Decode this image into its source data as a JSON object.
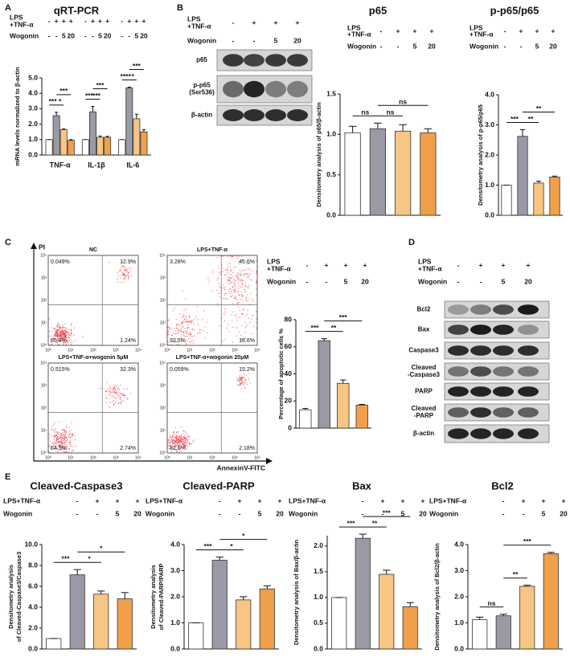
{
  "panels": [
    "A",
    "B",
    "C",
    "D",
    "E"
  ],
  "chart_data": [
    {
      "type": "bar",
      "title": "qRT-PCR",
      "ylabel": [
        "mRNA levels normalized to β-actin"
      ],
      "treatments": [
        {
          "label": [
            "LPS",
            "+TNF-α"
          ],
          "marks": [
            "-",
            "+",
            "+",
            "+",
            "-",
            "+",
            "+",
            "+",
            "-",
            "+",
            "+",
            "+"
          ]
        },
        {
          "label": [
            "Wogonin"
          ],
          "marks": [
            "-",
            "-",
            "5",
            "20",
            "-",
            "-",
            "5",
            "20",
            "-",
            "-",
            "5",
            "20"
          ]
        }
      ],
      "categories": [
        "TNF-α",
        "IL-1β",
        "IL-6"
      ],
      "series": [
        {
          "color": "#ffffff",
          "values": [
            1,
            1,
            1
          ],
          "errors": [
            0,
            0,
            0
          ]
        },
        {
          "color": "#9a9aa6",
          "values": [
            2.55,
            2.8,
            4.35
          ],
          "errors": [
            0.22,
            0.35,
            0.05
          ]
        },
        {
          "color": "#f7c684",
          "values": [
            1.65,
            1.15,
            2.35
          ],
          "errors": [
            0.05,
            0.08,
            0.3
          ]
        },
        {
          "color": "#f0a04b",
          "values": [
            0.95,
            1.15,
            1.5
          ],
          "errors": [
            0.05,
            0.06,
            0.15
          ]
        }
      ],
      "ylim": [
        0,
        5
      ],
      "yticks": [
        {
          "value": 0,
          "label": "0.0"
        },
        {
          "value": 1,
          "label": "1.0"
        },
        {
          "value": 2,
          "label": "2.0"
        },
        {
          "value": 3,
          "label": "3.0"
        },
        {
          "value": 4,
          "label": "4.0"
        },
        {
          "value": 5,
          "label": "5.0"
        }
      ],
      "annotations": [
        {
          "text": "***",
          "between": [
            0,
            1
          ]
        },
        {
          "text": "*",
          "between": [
            1,
            2
          ]
        },
        {
          "text": "***",
          "between": [
            1,
            3
          ]
        },
        {
          "text": "***",
          "between": [
            4,
            5
          ]
        },
        {
          "text": "***",
          "between": [
            5,
            6
          ]
        },
        {
          "text": "***",
          "between": [
            5,
            7
          ]
        },
        {
          "text": "****",
          "between": [
            8,
            9
          ]
        },
        {
          "text": "*",
          "between": [
            9,
            10
          ]
        },
        {
          "text": "***",
          "between": [
            9,
            11
          ]
        }
      ]
    },
    {
      "type": "bar",
      "title": "p65",
      "ylabel": [
        "Densitometry analysis of p65/β-actin"
      ],
      "treatments": [
        {
          "label": [
            "LPS",
            "+TNF-α"
          ],
          "marks": [
            "-",
            "+",
            "+",
            "+"
          ]
        },
        {
          "label": [
            "Wogonin"
          ],
          "marks": [
            "-",
            "-",
            "5",
            "20"
          ]
        }
      ],
      "values": [
        1.02,
        1.07,
        1.04,
        1.02
      ],
      "errors": [
        0.08,
        0.07,
        0.08,
        0.05
      ],
      "colors": [
        "#ffffff",
        "#9a9aa6",
        "#f7c684",
        "#f0a04b"
      ],
      "ylim": [
        0,
        1.5
      ],
      "yticks": [
        {
          "value": 0,
          "label": "0.0"
        },
        {
          "value": 0.5,
          "label": "0.5"
        },
        {
          "value": 1,
          "label": "1.0"
        },
        {
          "value": 1.5,
          "label": "1.5"
        }
      ],
      "annotations": [
        {
          "text": "ns",
          "between": [
            0,
            1
          ]
        },
        {
          "text": "ns",
          "between": [
            1,
            2
          ]
        },
        {
          "text": "ns",
          "between": [
            1,
            3
          ]
        }
      ]
    },
    {
      "type": "bar",
      "title": "p-p65/p65",
      "ylabel": [
        "Densitometry analysis of p-p65/p65"
      ],
      "treatments": [
        {
          "label": [
            "LPS",
            "+TNF-α"
          ],
          "marks": [
            "-",
            "+",
            "+",
            "+"
          ]
        },
        {
          "label": [
            "Wogonin"
          ],
          "marks": [
            "-",
            "-",
            "5",
            "20"
          ]
        }
      ],
      "values": [
        1,
        2.62,
        1.07,
        1.27
      ],
      "errors": [
        0,
        0.22,
        0.06,
        0.03
      ],
      "colors": [
        "#ffffff",
        "#9a9aa6",
        "#f7c684",
        "#f0a04b"
      ],
      "ylim": [
        0,
        4
      ],
      "yticks": [
        {
          "value": 0,
          "label": "0.0"
        },
        {
          "value": 1,
          "label": "1.0"
        },
        {
          "value": 2,
          "label": "2.0"
        },
        {
          "value": 3,
          "label": "3.0"
        },
        {
          "value": 4,
          "label": "4.0"
        }
      ],
      "annotations": [
        {
          "text": "***",
          "between": [
            0,
            1
          ]
        },
        {
          "text": "**",
          "between": [
            1,
            2
          ]
        },
        {
          "text": "**",
          "between": [
            1,
            3
          ]
        }
      ]
    },
    {
      "type": "bar",
      "ylabel": [
        "Percentage of apoptotic cells %"
      ],
      "treatments": [
        {
          "label": [
            "LPS",
            "+TNF-α"
          ],
          "marks": [
            "-",
            "+",
            "+",
            "+"
          ]
        },
        {
          "label": [
            "Wogonin"
          ],
          "marks": [
            "-",
            "-",
            "5",
            "20"
          ]
        }
      ],
      "values": [
        13.5,
        64.5,
        33,
        17
      ],
      "errors": [
        1,
        1.5,
        2.5,
        0.5
      ],
      "colors": [
        "#ffffff",
        "#9a9aa6",
        "#f7c684",
        "#f0a04b"
      ],
      "ylim": [
        0,
        80
      ],
      "yticks": [
        0,
        20,
        40,
        60,
        80
      ],
      "annotations": [
        {
          "text": "***",
          "between": [
            0,
            1
          ]
        },
        {
          "text": "**",
          "between": [
            1,
            2
          ]
        },
        {
          "text": "***",
          "between": [
            1,
            3
          ]
        }
      ]
    },
    {
      "type": "bar",
      "title": "Cleaved-Caspase3",
      "ylabel": [
        "Densitometry analysis",
        "of Cleaved-Caspase3/Caspase3"
      ],
      "treatments": [
        {
          "label": [
            "LPS+TNF-α"
          ],
          "marks": [
            "-",
            "+",
            "+",
            "+"
          ]
        },
        {
          "label": [
            "Wogonin"
          ],
          "marks": [
            "-",
            "-",
            "5",
            "20"
          ]
        }
      ],
      "values": [
        1,
        7.1,
        5.25,
        4.8
      ],
      "errors": [
        0,
        0.5,
        0.3,
        0.6
      ],
      "colors": [
        "#ffffff",
        "#9a9aa6",
        "#f7c684",
        "#f0a04b"
      ],
      "ylim": [
        0,
        10
      ],
      "yticks": [
        {
          "value": 0,
          "label": "0.0"
        },
        {
          "value": 2,
          "label": "2.0"
        },
        {
          "value": 4,
          "label": "4.0"
        },
        {
          "value": 6,
          "label": "6.0"
        },
        {
          "value": 8,
          "label": "8.0"
        },
        {
          "value": 10,
          "label": "10.0"
        }
      ],
      "annotations": [
        {
          "text": "***",
          "between": [
            0,
            1
          ]
        },
        {
          "text": "*",
          "between": [
            1,
            2
          ]
        },
        {
          "text": "*",
          "between": [
            1,
            3
          ]
        }
      ]
    },
    {
      "type": "bar",
      "title": "Cleaved-PARP",
      "ylabel": [
        "Densitometry analysis",
        "of Cleaved-PARP/PARP"
      ],
      "treatments": [
        {
          "label": [
            "LPS+TNF-α"
          ],
          "marks": [
            "-",
            "+",
            "+",
            "+"
          ]
        },
        {
          "label": [
            "Wogonin"
          ],
          "marks": [
            "-",
            "-",
            "5",
            "20"
          ]
        }
      ],
      "values": [
        1,
        3.4,
        1.88,
        2.3
      ],
      "errors": [
        0,
        0.12,
        0.12,
        0.12
      ],
      "colors": [
        "#ffffff",
        "#9a9aa6",
        "#f7c684",
        "#f0a04b"
      ],
      "ylim": [
        0,
        4
      ],
      "yticks": [
        {
          "value": 0,
          "label": "0.0"
        },
        {
          "value": 1,
          "label": "1.0"
        },
        {
          "value": 2,
          "label": "2.0"
        },
        {
          "value": 3,
          "label": "3.0"
        },
        {
          "value": 4,
          "label": "4.0"
        }
      ],
      "annotations": [
        {
          "text": "***",
          "between": [
            0,
            1
          ]
        },
        {
          "text": "*",
          "between": [
            1,
            2
          ]
        },
        {
          "text": "*",
          "between": [
            1,
            3
          ]
        }
      ]
    },
    {
      "type": "bar",
      "title": "Bax",
      "ylabel": [
        "Densitometry analysis of Bax/β-actin"
      ],
      "treatments": [
        {
          "label": [
            "LPS+TNF-α"
          ],
          "marks": [
            "-",
            "+",
            "+",
            "+"
          ]
        },
        {
          "label": [
            "Wogonin"
          ],
          "marks": [
            "-",
            "-",
            "5",
            "20"
          ]
        }
      ],
      "values": [
        1,
        2.15,
        1.45,
        0.82
      ],
      "errors": [
        0,
        0.08,
        0.08,
        0.08
      ],
      "colors": [
        "#ffffff",
        "#9a9aa6",
        "#f7c684",
        "#f0a04b"
      ],
      "ylim": [
        0,
        2.2
      ],
      "yticks": [
        {
          "value": 0,
          "label": "0.0"
        },
        {
          "value": 0.5,
          "label": "0.5"
        },
        {
          "value": 1,
          "label": "1.0"
        },
        {
          "value": 1.5,
          "label": "1.5"
        },
        {
          "value": 2,
          "label": "2.0"
        }
      ],
      "annotations": [
        {
          "text": "***",
          "between": [
            0,
            1
          ]
        },
        {
          "text": "**",
          "between": [
            1,
            2
          ]
        },
        {
          "text": "***",
          "between": [
            1,
            3
          ]
        }
      ]
    },
    {
      "type": "bar",
      "title": "Bcl2",
      "ylabel": [
        "Densitometry analysis of Bcl2/β-actin"
      ],
      "treatments": [
        {
          "label": [
            "LPS+TNF-α"
          ],
          "marks": [
            "-",
            "+",
            "+",
            "+"
          ]
        },
        {
          "label": [
            "Wogonin"
          ],
          "marks": [
            "-",
            "-",
            "5",
            "20"
          ]
        }
      ],
      "values": [
        1.12,
        1.27,
        2.4,
        3.65
      ],
      "errors": [
        0.1,
        0.06,
        0.04,
        0.05
      ],
      "colors": [
        "#ffffff",
        "#9a9aa6",
        "#f7c684",
        "#f0a04b"
      ],
      "ylim": [
        0,
        4
      ],
      "yticks": [
        {
          "value": 0,
          "label": "0.0"
        },
        {
          "value": 1,
          "label": "1.0"
        },
        {
          "value": 2,
          "label": "2.0"
        },
        {
          "value": 3,
          "label": "3.0"
        },
        {
          "value": 4,
          "label": "4.0"
        }
      ],
      "annotations": [
        {
          "text": "ns",
          "between": [
            0,
            1
          ]
        },
        {
          "text": "**",
          "between": [
            1,
            2
          ]
        },
        {
          "text": "***",
          "between": [
            1,
            3
          ]
        }
      ]
    }
  ],
  "blots": [
    {
      "treatments": [
        {
          "label": [
            "LPS",
            "+TNF-α"
          ],
          "marks": [
            "-",
            "+",
            "+",
            "+"
          ]
        },
        {
          "label": [
            "Wogonin"
          ],
          "marks": [
            "-",
            "-",
            "5",
            "20"
          ]
        }
      ],
      "rows": [
        [
          "p65"
        ],
        [
          "p-p65",
          "(Ser536)"
        ],
        [
          "β-actin"
        ]
      ]
    },
    {
      "treatments": [
        {
          "label": [
            "LPS",
            "+TNF-α"
          ],
          "marks": [
            "-",
            "+",
            "+",
            "+"
          ]
        },
        {
          "label": [
            "Wogonin"
          ],
          "marks": [
            "-",
            "-",
            "5",
            "20"
          ]
        }
      ],
      "rows": [
        [
          "Bcl2"
        ],
        [
          "Bax"
        ],
        [
          "Caspase3"
        ],
        [
          "Cleaved",
          "-Caspase3"
        ],
        [
          "PARP"
        ],
        [
          "Cleaved",
          "-PARP"
        ],
        [
          "β-actin"
        ]
      ]
    }
  ],
  "flow": {
    "y_axis": "PI",
    "x_axis": "AnnexinV-FITC",
    "ticks": [
      "10⁰",
      "10¹",
      "10²",
      "10³",
      "10⁴"
    ],
    "plots": [
      {
        "title": "NC",
        "quadrants": [
          "0.049%",
          "12.9%",
          "85.8%",
          "1.24%"
        ]
      },
      {
        "title": "LPS+TNF-α",
        "quadrants": [
          "3.28%",
          "45.6%",
          "32.5%",
          "18.6%"
        ]
      },
      {
        "title": "LPS+TNF-α+wogonin 5μM",
        "quadrants": [
          "0.515%",
          "32.3%",
          "64.5%",
          "2.74%"
        ]
      },
      {
        "title": "LPS+TNF-α+wogonin 20μM",
        "quadrants": [
          "0.059%",
          "15.2%",
          "82.6%",
          "2.18%"
        ]
      }
    ]
  }
}
